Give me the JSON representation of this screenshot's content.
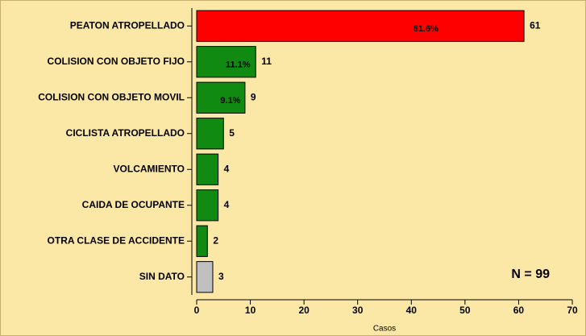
{
  "chart_data": {
    "type": "barh",
    "categories": [
      "PEATON ATROPELLADO",
      "COLISION CON OBJETO FIJO",
      "COLISION CON OBJETO MOVIL",
      "CICLISTA ATROPELLADO",
      "VOLCAMIENTO",
      "CAIDA DE OCUPANTE",
      "OTRA CLASE DE ACCIDENTE",
      "SIN DATO"
    ],
    "values": [
      61,
      11,
      9,
      5,
      4,
      4,
      2,
      3
    ],
    "colors": [
      "#ff0000",
      "#118a11",
      "#118a11",
      "#118a11",
      "#118a11",
      "#118a11",
      "#118a11",
      "#c0c0c0"
    ],
    "percent_labels": [
      "61.6%",
      "11.1%",
      "9.1%",
      null,
      null,
      null,
      null,
      null
    ],
    "xlabel": "Casos",
    "annotation": "N = 99",
    "xlim": [
      0,
      70
    ],
    "xticks": [
      0,
      10,
      20,
      30,
      40,
      50,
      60,
      70
    ],
    "grid": false
  }
}
